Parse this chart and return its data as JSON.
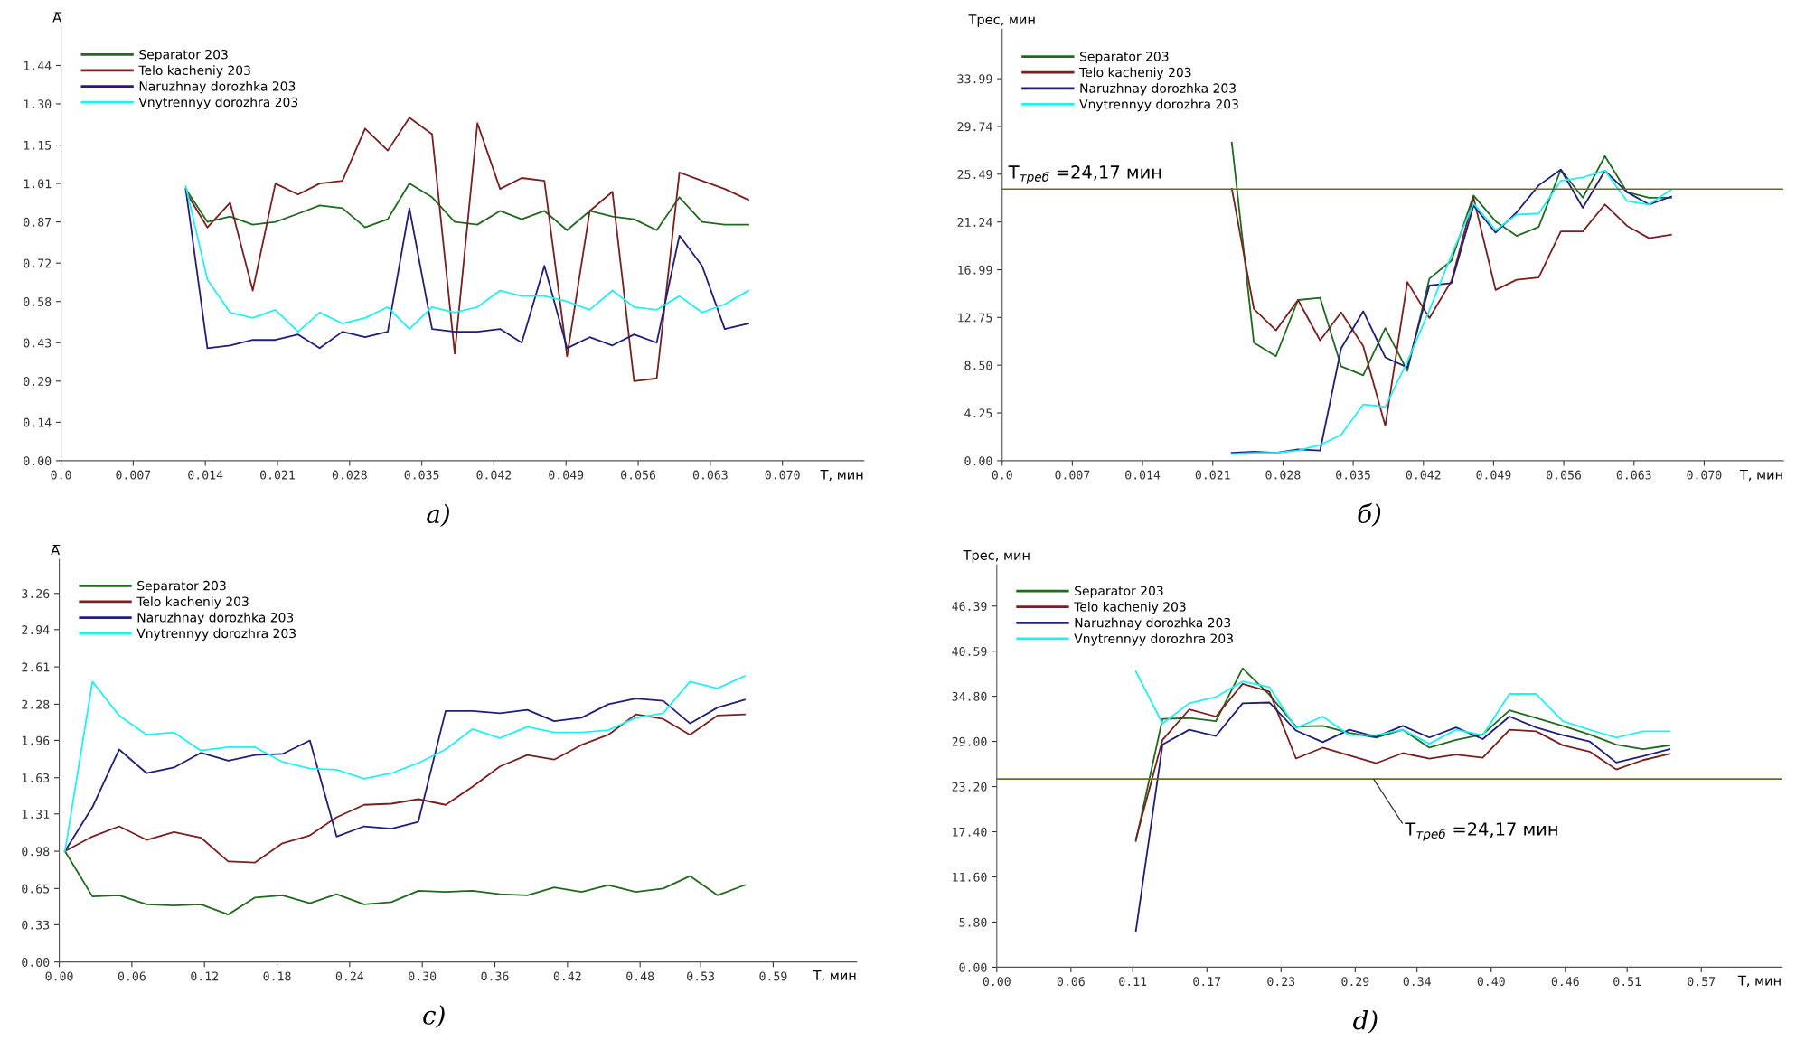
{
  "chart_data": [
    {
      "type": "line",
      "ylabel": "A̅",
      "xlabel": "T, мин",
      "legend": "top left",
      "grid": false,
      "annotations": [
        "a)"
      ],
      "xlim": [
        0,
        0.0779
      ],
      "ylim": [
        0,
        1.58
      ],
      "xticks": [
        {
          "value": 0,
          "label": "0.0"
        },
        {
          "value": 0.007,
          "label": "0.007"
        },
        {
          "value": 0.014,
          "label": "0.014"
        },
        {
          "value": 0.021,
          "label": "0.021"
        },
        {
          "value": 0.028,
          "label": "0.028"
        },
        {
          "value": 0.035,
          "label": "0.035"
        },
        {
          "value": 0.042,
          "label": "0.042"
        },
        {
          "value": 0.049,
          "label": "0.049"
        },
        {
          "value": 0.056,
          "label": "0.056"
        },
        {
          "value": 0.063,
          "label": "0.063"
        },
        {
          "value": 0.07,
          "label": "0.070"
        }
      ],
      "yticks": [
        {
          "value": 0,
          "label": "0.00"
        },
        {
          "value": 0.14,
          "label": "0.14"
        },
        {
          "value": 0.29,
          "label": "0.29"
        },
        {
          "value": 0.43,
          "label": "0.43"
        },
        {
          "value": 0.58,
          "label": "0.58"
        },
        {
          "value": 0.72,
          "label": "0.72"
        },
        {
          "value": 0.87,
          "label": "0.87"
        },
        {
          "value": 1.01,
          "label": "1.01"
        },
        {
          "value": 1.15,
          "label": "1.15"
        },
        {
          "value": 1.3,
          "label": "1.30"
        },
        {
          "value": 1.44,
          "label": "1.44"
        }
      ],
      "x": [
        0.0121,
        0.0142,
        0.0164,
        0.0186,
        0.0208,
        0.023,
        0.0251,
        0.0273,
        0.0295,
        0.0317,
        0.0338,
        0.036,
        0.0382,
        0.0404,
        0.0426,
        0.0447,
        0.0469,
        0.0491,
        0.0513,
        0.0535,
        0.0556,
        0.0578,
        0.06,
        0.0622,
        0.0644,
        0.0667
      ],
      "series": [
        {
          "name": "Separator 203",
          "color": "#1e6b1e",
          "values": [
            0.99,
            0.87,
            0.89,
            0.86,
            0.87,
            0.9,
            0.93,
            0.92,
            0.85,
            0.88,
            1.01,
            0.96,
            0.87,
            0.86,
            0.91,
            0.88,
            0.91,
            0.84,
            0.91,
            0.89,
            0.88,
            0.84,
            0.96,
            0.87,
            0.86,
            0.86
          ]
        },
        {
          "name": "Telo kacheniy 203",
          "color": "#7a1f1f",
          "values": [
            0.98,
            0.85,
            0.94,
            0.62,
            1.01,
            0.97,
            1.01,
            1.02,
            1.21,
            1.13,
            1.25,
            1.19,
            0.39,
            1.23,
            0.99,
            1.03,
            1.02,
            0.38,
            0.91,
            0.98,
            0.29,
            0.3,
            1.05,
            1.02,
            0.99,
            0.95
          ]
        },
        {
          "name": "Naruzhnay dorozhka 203",
          "color": "#1f1f7a",
          "values": [
            0.99,
            0.41,
            0.42,
            0.44,
            0.44,
            0.46,
            0.41,
            0.47,
            0.45,
            0.47,
            0.92,
            0.48,
            0.47,
            0.47,
            0.48,
            0.43,
            0.71,
            0.41,
            0.45,
            0.42,
            0.46,
            0.43,
            0.82,
            0.71,
            0.48,
            0.5
          ]
        },
        {
          "name": "Vnytrennyy dorozhra 203",
          "color": "#22f0f0",
          "values": [
            1.0,
            0.66,
            0.54,
            0.52,
            0.55,
            0.47,
            0.54,
            0.5,
            0.52,
            0.56,
            0.48,
            0.56,
            0.54,
            0.56,
            0.62,
            0.6,
            0.6,
            0.58,
            0.55,
            0.62,
            0.56,
            0.55,
            0.6,
            0.54,
            0.57,
            0.62
          ]
        }
      ]
    },
    {
      "type": "line",
      "ylabel": "Трес, мин",
      "xlabel": "T, мин",
      "legend": "top left",
      "grid": false,
      "annotations": [
        "б)"
      ],
      "ref_lines": [
        {
          "axis": "y",
          "value": 24.17,
          "label": "T$_{треб}$ =24,17 мин",
          "color": "#6b6b1e"
        }
      ],
      "xlim": [
        0,
        0.0779
      ],
      "ylim": [
        0,
        38.4
      ],
      "xticks": [
        {
          "value": 0,
          "label": "0.0"
        },
        {
          "value": 0.007,
          "label": "0.007"
        },
        {
          "value": 0.014,
          "label": "0.014"
        },
        {
          "value": 0.021,
          "label": "0.021"
        },
        {
          "value": 0.028,
          "label": "0.028"
        },
        {
          "value": 0.035,
          "label": "0.035"
        },
        {
          "value": 0.042,
          "label": "0.042"
        },
        {
          "value": 0.049,
          "label": "0.049"
        },
        {
          "value": 0.056,
          "label": "0.056"
        },
        {
          "value": 0.063,
          "label": "0.063"
        },
        {
          "value": 0.07,
          "label": "0.070"
        }
      ],
      "yticks": [
        {
          "value": 0,
          "label": "0.00"
        },
        {
          "value": 4.25,
          "label": "4.25"
        },
        {
          "value": 8.5,
          "label": "8.50"
        },
        {
          "value": 12.75,
          "label": "12.75"
        },
        {
          "value": 16.99,
          "label": "16.99"
        },
        {
          "value": 21.24,
          "label": "21.24"
        },
        {
          "value": 25.49,
          "label": "25.49"
        },
        {
          "value": 29.74,
          "label": "29.74"
        },
        {
          "value": 33.99,
          "label": "33.99"
        }
      ],
      "x": [
        0.0229,
        0.0251,
        0.0273,
        0.0295,
        0.0317,
        0.0338,
        0.036,
        0.0382,
        0.0404,
        0.0426,
        0.0448,
        0.047,
        0.0492,
        0.0513,
        0.0535,
        0.0557,
        0.0579,
        0.0601,
        0.0623,
        0.0645,
        0.0667
      ],
      "series": [
        {
          "name": "Separator 203",
          "color": "#1e6b1e",
          "values": [
            28.3,
            10.5,
            9.3,
            14.3,
            14.5,
            8.4,
            7.6,
            11.8,
            8.0,
            16.2,
            17.8,
            23.6,
            21.3,
            20.0,
            20.8,
            25.9,
            23.4,
            27.1,
            23.9,
            23.4,
            23.4
          ]
        },
        {
          "name": "Telo kacheniy 203",
          "color": "#7a1f1f",
          "values": [
            24.2,
            13.5,
            11.6,
            14.3,
            10.7,
            13.2,
            10.2,
            3.1,
            15.9,
            12.7,
            16.0,
            23.4,
            15.2,
            16.1,
            16.3,
            20.4,
            20.4,
            22.8,
            20.9,
            19.8,
            20.1
          ]
        },
        {
          "name": "Naruzhnay dorozhka 203",
          "color": "#1f1f7a",
          "values": [
            0.7,
            0.8,
            0.7,
            1.0,
            0.9,
            10.0,
            13.3,
            9.2,
            8.3,
            15.6,
            15.8,
            22.7,
            20.3,
            22.1,
            24.5,
            25.9,
            22.5,
            25.8,
            23.9,
            22.8,
            23.5
          ]
        },
        {
          "name": "Vnytrennyy dorozhra 203",
          "color": "#22f0f0",
          "values": [
            0.6,
            0.7,
            0.7,
            0.9,
            1.4,
            2.3,
            5.0,
            4.8,
            8.8,
            13.4,
            18.3,
            22.9,
            20.5,
            21.9,
            22.0,
            24.9,
            25.2,
            25.8,
            23.1,
            22.8,
            24.1
          ]
        }
      ]
    },
    {
      "type": "line",
      "ylabel": "A̅",
      "xlabel": "T, мин",
      "legend": "top left",
      "grid": false,
      "annotations": [
        "c)"
      ],
      "xlim": [
        0,
        0.659
      ],
      "ylim": [
        0,
        3.56
      ],
      "xticks": [
        {
          "value": 0,
          "label": "0.00"
        },
        {
          "value": 0.06,
          "label": "0.06"
        },
        {
          "value": 0.12,
          "label": "0.12"
        },
        {
          "value": 0.18,
          "label": "0.18"
        },
        {
          "value": 0.24,
          "label": "0.24"
        },
        {
          "value": 0.3,
          "label": "0.30"
        },
        {
          "value": 0.36,
          "label": "0.36"
        },
        {
          "value": 0.42,
          "label": "0.42"
        },
        {
          "value": 0.48,
          "label": "0.48"
        },
        {
          "value": 0.53,
          "label": "0.53"
        },
        {
          "value": 0.59,
          "label": "0.59"
        }
      ],
      "yticks": [
        {
          "value": 0,
          "label": "0.00"
        },
        {
          "value": 0.33,
          "label": "0.33"
        },
        {
          "value": 0.65,
          "label": "0.65"
        },
        {
          "value": 0.98,
          "label": "0.98"
        },
        {
          "value": 1.31,
          "label": "1.31"
        },
        {
          "value": 1.63,
          "label": "1.63"
        },
        {
          "value": 1.96,
          "label": "1.96"
        },
        {
          "value": 2.28,
          "label": "2.28"
        },
        {
          "value": 2.61,
          "label": "2.61"
        },
        {
          "value": 2.94,
          "label": "2.94"
        },
        {
          "value": 3.26,
          "label": "3.26"
        }
      ],
      "x": [
        0.0047,
        0.0274,
        0.0495,
        0.0722,
        0.0948,
        0.117,
        0.1396,
        0.1618,
        0.1844,
        0.2071,
        0.2292,
        0.2519,
        0.2745,
        0.2967,
        0.3193,
        0.3415,
        0.3642,
        0.3868,
        0.409,
        0.4316,
        0.4538,
        0.4764,
        0.4991,
        0.5212,
        0.5439,
        0.5665
      ],
      "series": [
        {
          "name": "Separator 203",
          "color": "#1e6b1e",
          "values": [
            0.98,
            0.58,
            0.59,
            0.51,
            0.5,
            0.51,
            0.42,
            0.57,
            0.59,
            0.52,
            0.6,
            0.51,
            0.53,
            0.63,
            0.62,
            0.63,
            0.6,
            0.59,
            0.66,
            0.62,
            0.68,
            0.62,
            0.65,
            0.76,
            0.59,
            0.68
          ]
        },
        {
          "name": "Telo kacheniy 203",
          "color": "#7a1f1f",
          "values": [
            0.98,
            1.11,
            1.2,
            1.08,
            1.15,
            1.1,
            0.89,
            0.88,
            1.05,
            1.12,
            1.28,
            1.39,
            1.4,
            1.44,
            1.39,
            1.55,
            1.73,
            1.83,
            1.79,
            1.92,
            2.01,
            2.19,
            2.15,
            2.01,
            2.18,
            2.19
          ]
        },
        {
          "name": "Naruzhnay dorozhka 203",
          "color": "#1f1f7a",
          "values": [
            0.98,
            1.37,
            1.88,
            1.67,
            1.72,
            1.85,
            1.78,
            1.83,
            1.84,
            1.96,
            1.11,
            1.2,
            1.18,
            1.24,
            2.22,
            2.22,
            2.2,
            2.23,
            2.13,
            2.16,
            2.28,
            2.33,
            2.31,
            2.11,
            2.25,
            2.32
          ]
        },
        {
          "name": "Vnytrennyy dorozhra 203",
          "color": "#22f0f0",
          "values": [
            0.98,
            2.48,
            2.18,
            2.01,
            2.03,
            1.87,
            1.9,
            1.9,
            1.77,
            1.71,
            1.7,
            1.62,
            1.67,
            1.76,
            1.88,
            2.06,
            1.98,
            2.08,
            2.03,
            2.03,
            2.05,
            2.16,
            2.2,
            2.48,
            2.42,
            2.53
          ]
        }
      ]
    },
    {
      "type": "line",
      "ylabel": "Трес, мин",
      "xlabel": "T, мин",
      "legend": "top left",
      "grid": false,
      "annotations": [
        "d)"
      ],
      "ref_lines": [
        {
          "axis": "y",
          "value": 24.17,
          "label": "T$_{треб}$ =24,17 мин",
          "color": "#6b6b1e"
        }
      ],
      "xlim": [
        0,
        0.635
      ],
      "ylim": [
        0,
        51.7
      ],
      "xticks": [
        {
          "value": 0,
          "label": "0.00"
        },
        {
          "value": 0.06,
          "label": "0.06"
        },
        {
          "value": 0.11,
          "label": "0.11"
        },
        {
          "value": 0.17,
          "label": "0.17"
        },
        {
          "value": 0.23,
          "label": "0.23"
        },
        {
          "value": 0.29,
          "label": "0.29"
        },
        {
          "value": 0.34,
          "label": "0.34"
        },
        {
          "value": 0.4,
          "label": "0.40"
        },
        {
          "value": 0.46,
          "label": "0.46"
        },
        {
          "value": 0.51,
          "label": "0.51"
        },
        {
          "value": 0.57,
          "label": "0.57"
        }
      ],
      "yticks": [
        {
          "value": 0,
          "label": "0.00"
        },
        {
          "value": 5.8,
          "label": "5.80"
        },
        {
          "value": 11.6,
          "label": "11.60"
        },
        {
          "value": 17.4,
          "label": "17.40"
        },
        {
          "value": 23.2,
          "label": "23.20"
        },
        {
          "value": 29.0,
          "label": "29.00"
        },
        {
          "value": 34.8,
          "label": "34.80"
        },
        {
          "value": 40.59,
          "label": "40.59"
        },
        {
          "value": 46.39,
          "label": "46.39"
        }
      ],
      "x": [
        0.1125,
        0.1341,
        0.1557,
        0.1773,
        0.1989,
        0.2205,
        0.2421,
        0.2637,
        0.2853,
        0.3069,
        0.3285,
        0.35,
        0.3716,
        0.3932,
        0.4148,
        0.4364,
        0.458,
        0.4796,
        0.5012,
        0.5228,
        0.5444
      ],
      "series": [
        {
          "name": "Separator 203",
          "color": "#1e6b1e",
          "values": [
            16.2,
            31.9,
            32.0,
            31.6,
            38.4,
            35.0,
            30.9,
            31.0,
            30.1,
            29.5,
            30.5,
            28.2,
            29.2,
            29.9,
            33.0,
            32.0,
            31.0,
            29.9,
            28.6,
            28.0,
            28.5
          ]
        },
        {
          "name": "Telo kacheniy 203",
          "color": "#7a1f1f",
          "values": [
            16.4,
            29.2,
            33.1,
            32.2,
            36.4,
            35.4,
            26.8,
            28.2,
            27.2,
            26.2,
            27.5,
            26.8,
            27.3,
            26.9,
            30.5,
            30.3,
            28.5,
            27.7,
            25.4,
            26.6,
            27.4
          ]
        },
        {
          "name": "Naruzhnay dorozhka 203",
          "color": "#1f1f7a",
          "values": [
            4.6,
            28.6,
            30.5,
            29.7,
            33.9,
            34.0,
            30.4,
            28.9,
            30.5,
            29.6,
            31.0,
            29.5,
            30.8,
            29.3,
            32.2,
            30.8,
            29.8,
            29.0,
            26.3,
            27.1,
            28.0
          ]
        },
        {
          "name": "Vnytrennyy dorozhra 203",
          "color": "#22f0f0",
          "values": [
            38.0,
            31.3,
            33.9,
            34.7,
            36.7,
            36.0,
            30.7,
            32.2,
            29.8,
            29.8,
            30.5,
            28.7,
            30.5,
            29.8,
            35.1,
            35.1,
            31.6,
            30.5,
            29.5,
            30.3,
            30.3
          ]
        }
      ]
    }
  ]
}
